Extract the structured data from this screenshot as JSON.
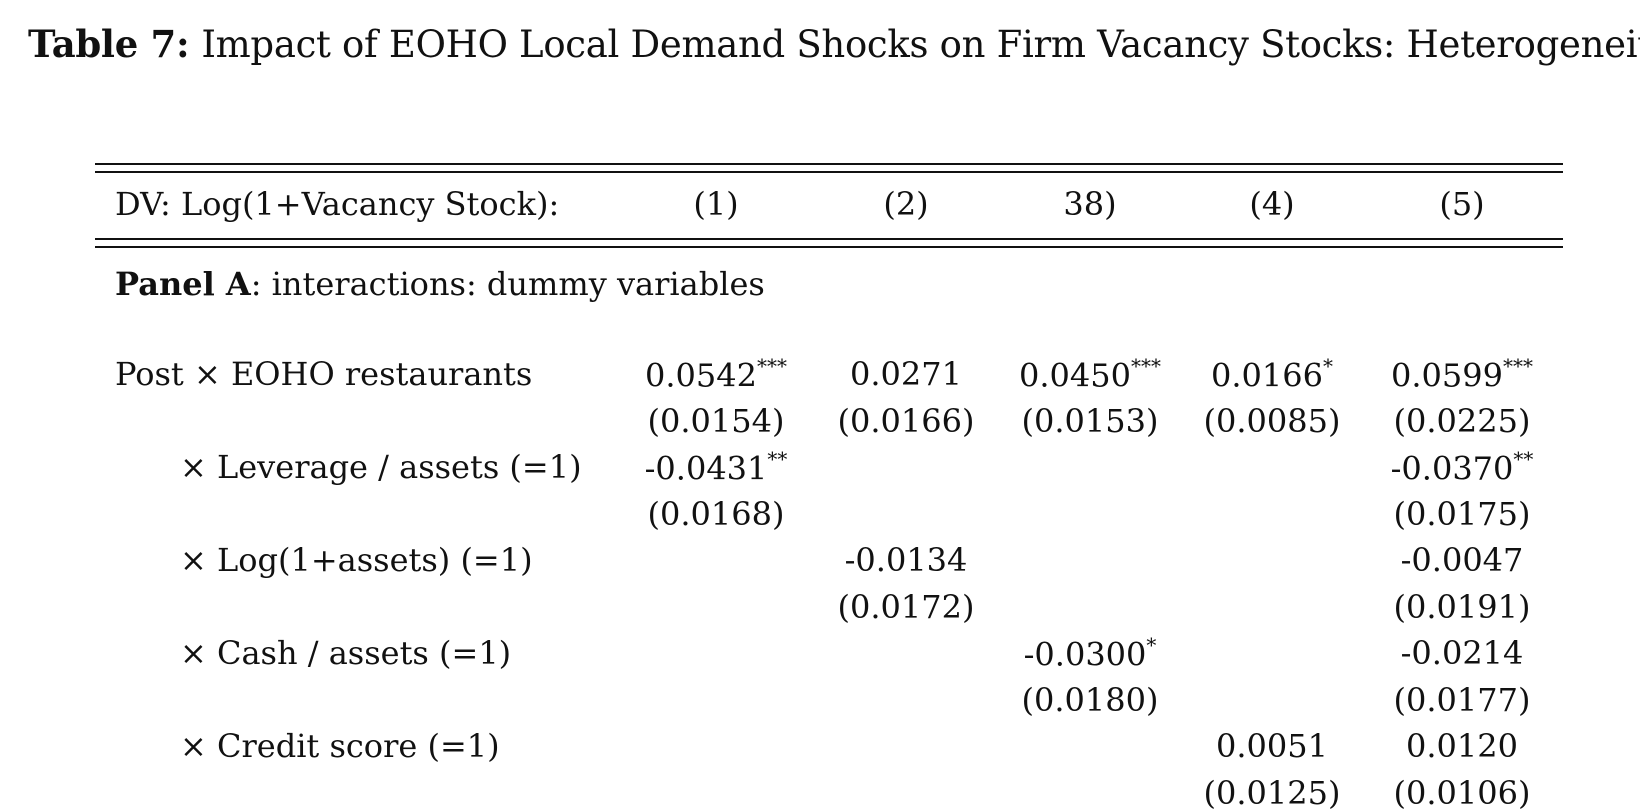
{
  "caption": {
    "label": "Table 7:",
    "title": "Impact of EOHO Local Demand Shocks on Firm Vacancy Stocks: Heterogeneity"
  },
  "header": {
    "dv_label": "DV: Log(1+Vacancy Stock):",
    "columns": [
      "(1)",
      "(2)",
      "38)",
      "(4)",
      "(5)"
    ]
  },
  "panel_a": {
    "bold": "Panel A",
    "rest": ": interactions: dummy variables"
  },
  "rows": [
    {
      "label": "Post × EOHO restaurants",
      "coef": [
        {
          "v": "0.0542",
          "s": "***"
        },
        {
          "v": "0.0271",
          "s": ""
        },
        {
          "v": "0.0450",
          "s": "***"
        },
        {
          "v": "0.0166",
          "s": "*"
        },
        {
          "v": "0.0599",
          "s": "***"
        }
      ],
      "se": [
        "(0.0154)",
        "(0.0166)",
        "(0.0153)",
        "(0.0085)",
        "(0.0225)"
      ]
    },
    {
      "label": "× Leverage / assets (=1)",
      "coef": [
        {
          "v": "-0.0431",
          "s": "**"
        },
        {
          "v": "",
          "s": ""
        },
        {
          "v": "",
          "s": ""
        },
        {
          "v": "",
          "s": ""
        },
        {
          "v": "-0.0370",
          "s": "**"
        }
      ],
      "se": [
        "(0.0168)",
        "",
        "",
        "",
        "(0.0175)"
      ]
    },
    {
      "label": "× Log(1+assets) (=1)",
      "coef": [
        {
          "v": "",
          "s": ""
        },
        {
          "v": "-0.0134",
          "s": ""
        },
        {
          "v": "",
          "s": ""
        },
        {
          "v": "",
          "s": ""
        },
        {
          "v": "-0.0047",
          "s": ""
        }
      ],
      "se": [
        "",
        "(0.0172)",
        "",
        "",
        "(0.0191)"
      ]
    },
    {
      "label": "× Cash / assets (=1)",
      "coef": [
        {
          "v": "",
          "s": ""
        },
        {
          "v": "",
          "s": ""
        },
        {
          "v": "-0.0300",
          "s": "*"
        },
        {
          "v": "",
          "s": ""
        },
        {
          "v": "-0.0214",
          "s": ""
        }
      ],
      "se": [
        "",
        "",
        "(0.0180)",
        "",
        "(0.0177)"
      ]
    },
    {
      "label": "× Credit score (=1)",
      "coef": [
        {
          "v": "",
          "s": ""
        },
        {
          "v": "",
          "s": ""
        },
        {
          "v": "",
          "s": ""
        },
        {
          "v": "0.0051",
          "s": ""
        },
        {
          "v": "0.0120",
          "s": ""
        }
      ],
      "se": [
        "",
        "",
        "",
        "(0.0125)",
        "(0.0106)"
      ]
    }
  ]
}
